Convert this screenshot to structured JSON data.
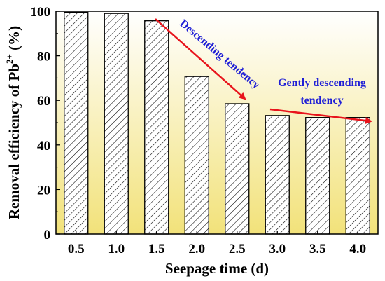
{
  "chart_data": {
    "type": "bar",
    "categories": [
      "0.5",
      "1.0",
      "1.5",
      "2.0",
      "2.5",
      "3.0",
      "3.5",
      "4.0"
    ],
    "values": [
      99.5,
      99.0,
      95.7,
      70.7,
      58.5,
      53.2,
      52.3,
      52.3
    ],
    "xlabel": "Seepage time (d)",
    "ylabel_prefix": "Removal efficiency of Pb",
    "ylabel_sup": "2+",
    "ylabel_suffix": " (%)",
    "ylim": [
      0,
      100
    ],
    "yticks": [
      "0",
      "20",
      "40",
      "60",
      "80",
      "100"
    ],
    "bar_fill": "hatched",
    "background_gradient": [
      "#ffffff",
      "#f2e27a"
    ],
    "grid": false,
    "annotations": [
      {
        "text": "Descending tendency",
        "color": "#1f1fd6",
        "arrow_color": "#e8141c"
      },
      {
        "text_line1": "Gently descending",
        "text_line2": "tendency",
        "color": "#1f1fd6",
        "arrow_color": "#e8141c"
      }
    ]
  }
}
